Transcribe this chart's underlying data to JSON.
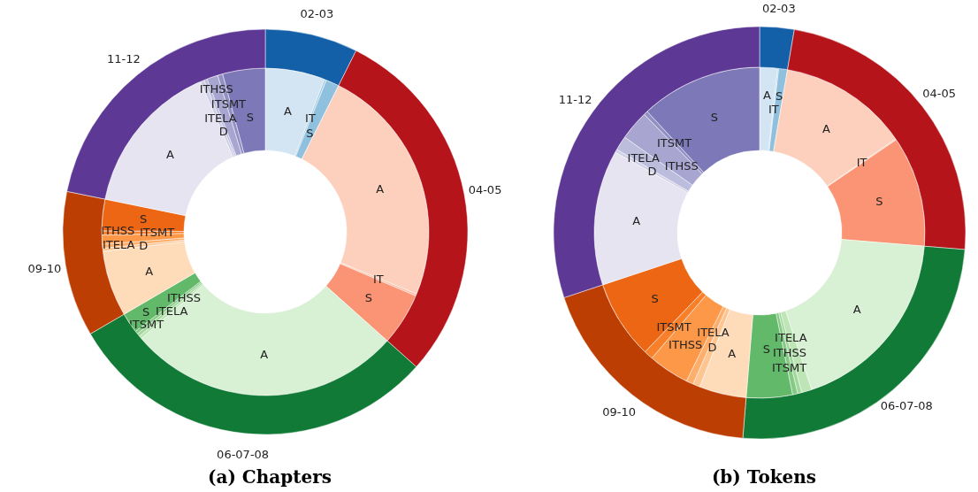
{
  "chart_data": [
    {
      "type": "donut",
      "title": "(a) Chapters",
      "categories": [
        "A",
        "IT",
        "S",
        "A",
        "IT",
        "S",
        "A",
        "ITELA",
        "ITHSS",
        "ITSMT",
        "S",
        "A",
        "D",
        "ITELA",
        "ITHSS",
        "ITSMT",
        "S",
        "A",
        "D",
        "ITELA",
        "ITHSS",
        "ITSMT",
        "S"
      ],
      "values": [
        5.9,
        0.2,
        1.3,
        23.8,
        0.2,
        5.2,
        27.1,
        0.3,
        0.3,
        0.3,
        2.0,
        6.5,
        0.3,
        0.4,
        0.9,
        0.4,
        3.1,
        15.3,
        0.4,
        0.3,
        1.1,
        0.5,
        4.2
      ],
      "colors": [
        "#d3e5f3",
        "#a5cde3",
        "#8fc0de",
        "#fcd0bc",
        "#fcbba1",
        "#fb9474",
        "#d8f0d3",
        "#bde5b5",
        "#a0d89b",
        "#85c985",
        "#63b96a",
        "#fedcba",
        "#fdc591",
        "#fdae6b",
        "#fd9848",
        "#f8802b",
        "#ec6614",
        "#e6e4f1",
        "#cfcfe6",
        "#bcbddd",
        "#a8a5d0",
        "#9391c3",
        "#7d78b7"
      ]
    },
    {
      "type": "donut",
      "categories": [
        "02-03",
        "04-05",
        "06-07-08",
        "09-10",
        "11-12"
      ],
      "values": [
        7.4,
        29.2,
        30.0,
        11.6,
        21.8
      ],
      "colors": [
        "#1460a8",
        "#b5141b",
        "#117a36",
        "#bc3e03",
        "#5d3894"
      ]
    },
    {
      "type": "donut",
      "title": "(b) Tokens",
      "categories": [
        "A",
        "IT",
        "S",
        "A",
        "IT",
        "S",
        "A",
        "ITELA",
        "ITHSS",
        "ITSMT",
        "S",
        "A",
        "D",
        "ITELA",
        "ITHSS",
        "ITSMT",
        "S",
        "A",
        "D",
        "ITELA",
        "ITHSS",
        "ITSMT",
        "S"
      ],
      "values": [
        1.75,
        0.1,
        0.85,
        12.7,
        0.1,
        10.8,
        18.6,
        1.0,
        0.4,
        0.5,
        4.5,
        4.6,
        0.7,
        0.7,
        4.0,
        0.9,
        7.7,
        13.2,
        0.3,
        1.4,
        2.9,
        0.4,
        11.9
      ],
      "colors": [
        "#d3e5f3",
        "#a5cde3",
        "#8fc0de",
        "#fcd0bc",
        "#fcbba1",
        "#fb9474",
        "#d8f0d3",
        "#bde5b5",
        "#a0d89b",
        "#85c985",
        "#63b96a",
        "#fedcba",
        "#fdc591",
        "#fdae6b",
        "#fd9848",
        "#f8802b",
        "#ec6614",
        "#e6e4f1",
        "#cfcfe6",
        "#bcbddd",
        "#a8a5d0",
        "#9391c3",
        "#7d78b7"
      ]
    },
    {
      "type": "donut",
      "categories": [
        "02-03",
        "04-05",
        "06-07-08",
        "09-10",
        "11-12"
      ],
      "values": [
        2.7,
        23.6,
        25.0,
        18.6,
        30.1
      ],
      "colors": [
        "#1460a8",
        "#b5141b",
        "#117a36",
        "#bc3e03",
        "#5d3894"
      ]
    }
  ]
}
